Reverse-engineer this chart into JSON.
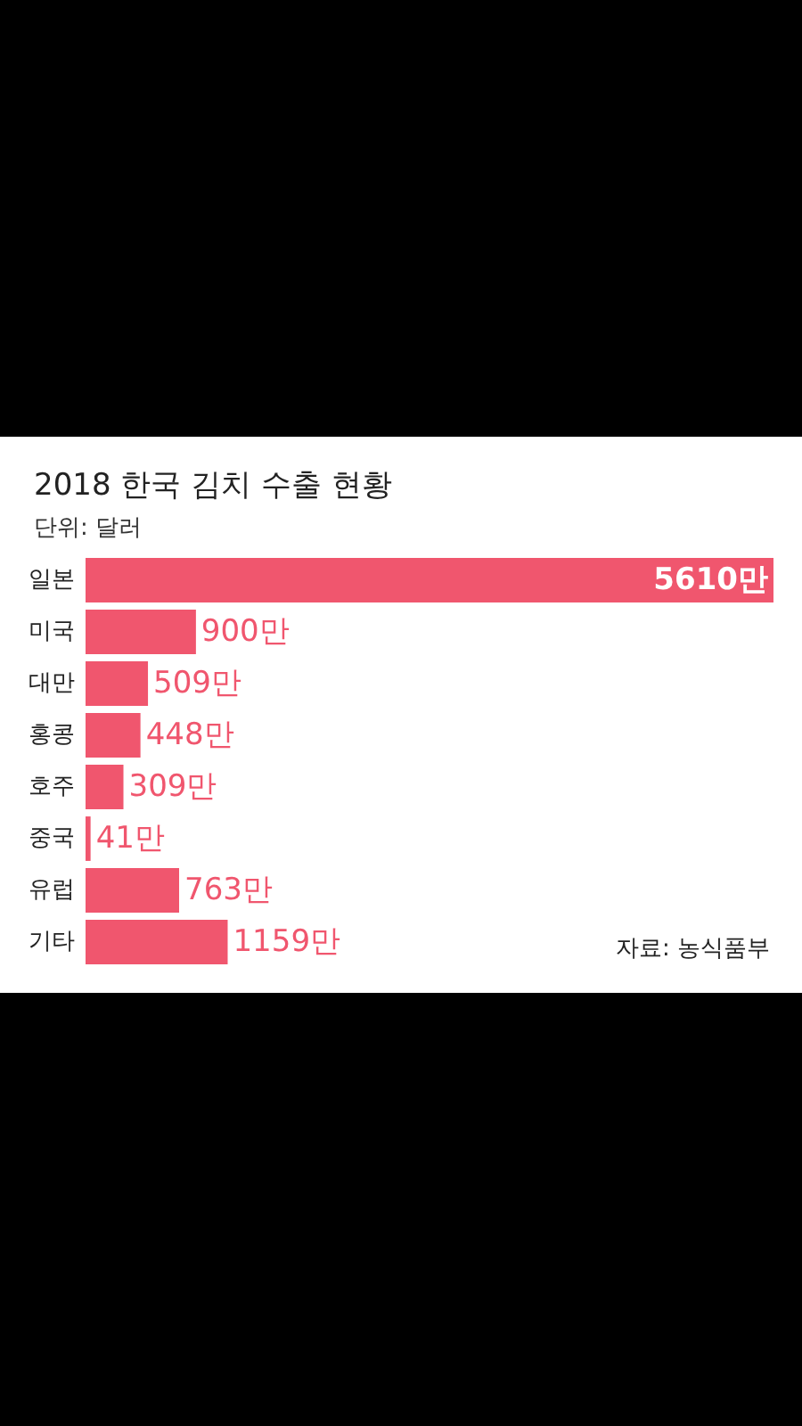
{
  "chart_data": {
    "type": "bar",
    "orientation": "horizontal",
    "title": "2018 한국 김치 수출 현황",
    "subtitle": "단위: 달러",
    "categories": [
      "일본",
      "미국",
      "대만",
      "홍콩",
      "호주",
      "중국",
      "유럽",
      "기타"
    ],
    "values": [
      5610,
      900,
      509,
      448,
      309,
      41,
      763,
      1159
    ],
    "value_labels": [
      "5610만",
      "900만",
      "509만",
      "448만",
      "309만",
      "41만",
      "763만",
      "1159만"
    ],
    "color": "#f0566e",
    "annotations": [
      "자료: 농식품부"
    ],
    "tick_labels": "y"
  }
}
